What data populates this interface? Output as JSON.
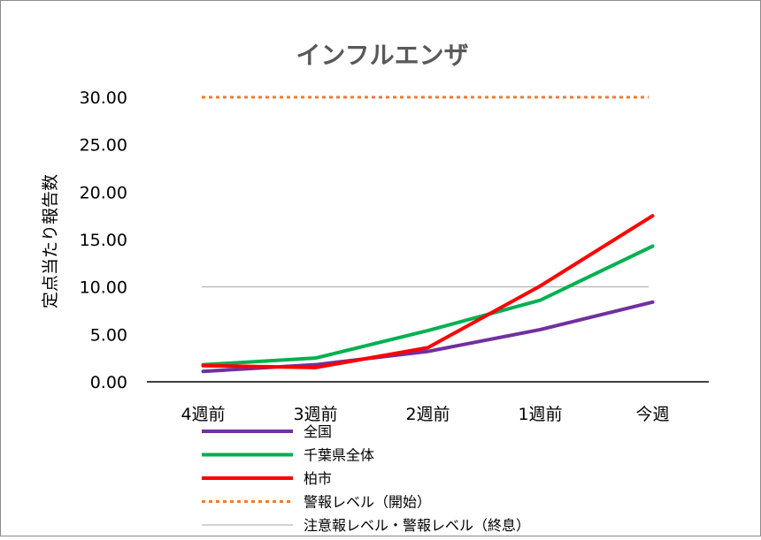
{
  "chart_data": {
    "type": "line",
    "title": "インフルエンザ",
    "ylabel": "定点当たり報告数",
    "xlabel": "",
    "categories": [
      "4週前",
      "3週前",
      "2週前",
      "1週前",
      "今週"
    ],
    "ylim": [
      0,
      30
    ],
    "yticks": [
      "0.00",
      "5.00",
      "10.00",
      "15.00",
      "20.00",
      "25.00",
      "30.00"
    ],
    "ytick_values": [
      0,
      5,
      10,
      15,
      20,
      25,
      30
    ],
    "grid": false,
    "legend_position": "bottom",
    "series": [
      {
        "name": "全国",
        "values": [
          1.1,
          1.8,
          3.2,
          5.5,
          8.4
        ],
        "color": "#7030A0",
        "style": "solid"
      },
      {
        "name": "千葉県全体",
        "values": [
          1.8,
          2.5,
          5.4,
          8.6,
          14.3
        ],
        "color": "#00B050",
        "style": "solid"
      },
      {
        "name": "柏市",
        "values": [
          1.7,
          1.5,
          3.6,
          10.1,
          17.5
        ],
        "color": "#FF0000",
        "style": "solid"
      }
    ],
    "reference_lines": [
      {
        "name": "警報レベル（開始）",
        "value": 30,
        "color": "#ED7D31",
        "style": "dotted"
      },
      {
        "name": "注意報レベル・警報レベル（終息）",
        "value": 10,
        "color": "#A6A6A6",
        "style": "thin"
      }
    ]
  }
}
